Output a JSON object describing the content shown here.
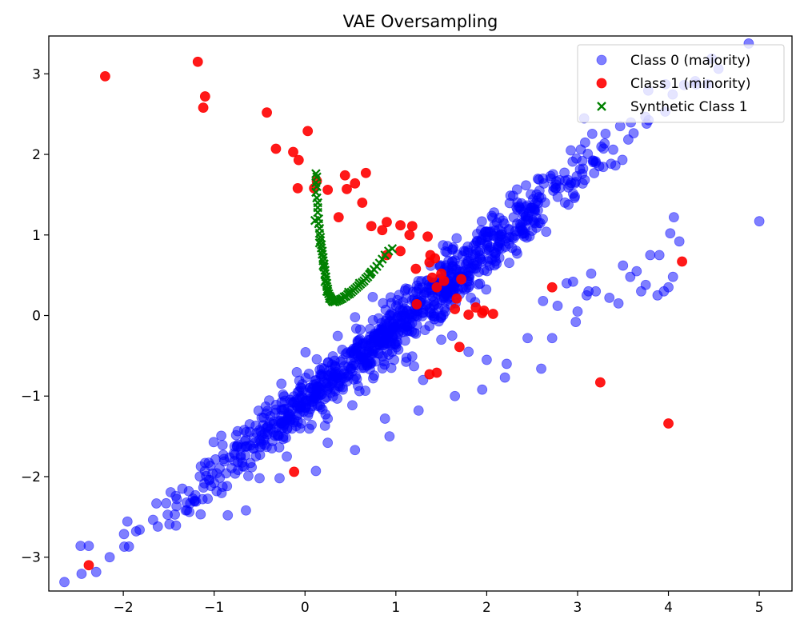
{
  "chart_data": {
    "type": "scatter",
    "title": "VAE Oversampling",
    "xlabel": "",
    "ylabel": "",
    "xlim": [
      -2.82,
      5.36
    ],
    "ylim": [
      -3.42,
      3.47
    ],
    "xticks": [
      -2,
      -1,
      0,
      1,
      2,
      3,
      4,
      5
    ],
    "yticks": [
      -3,
      -2,
      -1,
      0,
      1,
      2,
      3
    ],
    "grid": false,
    "legend": "top-right",
    "series": [
      {
        "name": "Class 0 (majority)",
        "marker": "circle",
        "color": "#0000ff",
        "opacity": 0.5,
        "generated": {
          "count": 1000,
          "x_mean": 1.0,
          "x_std": 1.15,
          "slope": 0.94,
          "intercept": -1.05,
          "y_noise_std": 0.18,
          "seed": 7
        },
        "points": [
          [
            -2.47,
            -2.86
          ],
          [
            -2.38,
            -2.86
          ],
          [
            -2.15,
            -3.0
          ],
          [
            -1.82,
            -2.66
          ],
          [
            -1.62,
            -2.62
          ],
          [
            -0.85,
            -2.48
          ],
          [
            -0.65,
            -2.42
          ],
          [
            -0.38,
            -1.25
          ],
          [
            -1.35,
            -2.15
          ],
          [
            -1.1,
            -1.83
          ],
          [
            -0.3,
            -1.48
          ],
          [
            -0.28,
            -2.02
          ],
          [
            -0.2,
            -1.75
          ],
          [
            0.12,
            -1.93
          ],
          [
            0.25,
            -1.28
          ],
          [
            0.25,
            -1.58
          ],
          [
            0.28,
            -0.96
          ],
          [
            0.55,
            -1.67
          ],
          [
            0.75,
            -0.78
          ],
          [
            0.88,
            -1.28
          ],
          [
            0.93,
            -1.5
          ],
          [
            0.95,
            -0.65
          ],
          [
            0.98,
            -0.55
          ],
          [
            1.2,
            -0.63
          ],
          [
            1.25,
            -1.18
          ],
          [
            1.3,
            -0.8
          ],
          [
            1.5,
            -0.3
          ],
          [
            1.62,
            -0.25
          ],
          [
            1.65,
            -1.0
          ],
          [
            1.8,
            -0.45
          ],
          [
            1.95,
            -0.92
          ],
          [
            2.0,
            -0.55
          ],
          [
            2.2,
            -0.77
          ],
          [
            2.22,
            -0.6
          ],
          [
            2.45,
            -0.28
          ],
          [
            2.6,
            -0.66
          ],
          [
            2.62,
            0.18
          ],
          [
            2.72,
            -0.28
          ],
          [
            2.78,
            0.12
          ],
          [
            2.88,
            0.4
          ],
          [
            2.95,
            0.42
          ],
          [
            2.98,
            -0.08
          ],
          [
            3.0,
            0.05
          ],
          [
            3.1,
            0.25
          ],
          [
            3.12,
            0.3
          ],
          [
            3.15,
            0.52
          ],
          [
            3.2,
            0.3
          ],
          [
            3.35,
            0.22
          ],
          [
            3.45,
            0.15
          ],
          [
            3.5,
            0.62
          ],
          [
            3.58,
            0.48
          ],
          [
            3.65,
            0.55
          ],
          [
            3.7,
            0.3
          ],
          [
            3.75,
            0.38
          ],
          [
            3.8,
            0.75
          ],
          [
            3.88,
            0.25
          ],
          [
            3.9,
            0.75
          ],
          [
            3.95,
            0.3
          ],
          [
            4.0,
            0.35
          ],
          [
            4.02,
            1.02
          ],
          [
            4.05,
            0.48
          ],
          [
            4.06,
            1.22
          ],
          [
            4.12,
            0.92
          ],
          [
            5.0,
            1.17
          ],
          [
            -0.9,
            -1.73
          ],
          [
            -0.6,
            -1.83
          ],
          [
            -0.75,
            -1.62
          ],
          [
            -0.5,
            -2.02
          ],
          [
            -1.0,
            -2.08
          ],
          [
            -1.2,
            -2.31
          ]
        ]
      },
      {
        "name": "Class 1 (minority)",
        "marker": "circle",
        "color": "#ff0000",
        "opacity": 0.9,
        "points": [
          [
            -2.2,
            2.97
          ],
          [
            -1.18,
            3.15
          ],
          [
            -1.1,
            2.72
          ],
          [
            -1.12,
            2.58
          ],
          [
            -0.42,
            2.52
          ],
          [
            0.03,
            2.29
          ],
          [
            -0.32,
            2.07
          ],
          [
            -0.13,
            2.03
          ],
          [
            -0.07,
            1.93
          ],
          [
            -0.08,
            1.58
          ],
          [
            0.1,
            1.58
          ],
          [
            0.13,
            1.67
          ],
          [
            0.25,
            1.56
          ],
          [
            0.44,
            1.74
          ],
          [
            0.46,
            1.57
          ],
          [
            0.55,
            1.64
          ],
          [
            0.67,
            1.77
          ],
          [
            0.63,
            1.4
          ],
          [
            0.37,
            1.22
          ],
          [
            0.73,
            1.11
          ],
          [
            0.85,
            1.06
          ],
          [
            0.9,
            1.16
          ],
          [
            1.05,
            1.12
          ],
          [
            1.15,
            1.0
          ],
          [
            1.18,
            1.11
          ],
          [
            0.9,
            0.75
          ],
          [
            1.05,
            0.8
          ],
          [
            1.22,
            0.58
          ],
          [
            1.35,
            0.98
          ],
          [
            1.37,
            0.66
          ],
          [
            1.38,
            0.75
          ],
          [
            1.43,
            0.71
          ],
          [
            1.4,
            0.47
          ],
          [
            1.45,
            0.35
          ],
          [
            1.5,
            0.52
          ],
          [
            1.53,
            0.43
          ],
          [
            1.72,
            0.45
          ],
          [
            1.67,
            0.21
          ],
          [
            1.65,
            0.08
          ],
          [
            1.8,
            0.01
          ],
          [
            1.88,
            0.1
          ],
          [
            1.95,
            0.03
          ],
          [
            1.97,
            0.06
          ],
          [
            2.07,
            0.02
          ],
          [
            1.23,
            0.14
          ],
          [
            2.72,
            0.35
          ],
          [
            1.7,
            -0.39
          ],
          [
            1.45,
            -0.71
          ],
          [
            1.37,
            -0.73
          ],
          [
            3.25,
            -0.83
          ],
          [
            4.0,
            -1.34
          ],
          [
            4.15,
            0.67
          ],
          [
            -0.12,
            -1.94
          ],
          [
            -2.38,
            -3.1
          ]
        ]
      },
      {
        "name": "Synthetic Class 1",
        "marker": "x",
        "color": "#008000",
        "opacity": 1,
        "points": [
          [
            0.12,
            1.76
          ],
          [
            0.13,
            1.72
          ],
          [
            0.12,
            1.65
          ],
          [
            0.13,
            1.6
          ],
          [
            0.12,
            1.53
          ],
          [
            0.13,
            1.46
          ],
          [
            0.14,
            1.4
          ],
          [
            0.14,
            1.34
          ],
          [
            0.14,
            1.28
          ],
          [
            0.15,
            1.2
          ],
          [
            0.15,
            1.14
          ],
          [
            0.16,
            1.08
          ],
          [
            0.16,
            1.02
          ],
          [
            0.17,
            0.97
          ],
          [
            0.17,
            0.93
          ],
          [
            0.18,
            0.88
          ],
          [
            0.18,
            0.84
          ],
          [
            0.19,
            0.8
          ],
          [
            0.19,
            0.76
          ],
          [
            0.2,
            0.72
          ],
          [
            0.2,
            0.68
          ],
          [
            0.21,
            0.64
          ],
          [
            0.21,
            0.6
          ],
          [
            0.22,
            0.56
          ],
          [
            0.22,
            0.52
          ],
          [
            0.23,
            0.48
          ],
          [
            0.23,
            0.44
          ],
          [
            0.24,
            0.4
          ],
          [
            0.24,
            0.36
          ],
          [
            0.25,
            0.33
          ],
          [
            0.25,
            0.3
          ],
          [
            0.26,
            0.27
          ],
          [
            0.27,
            0.24
          ],
          [
            0.28,
            0.22
          ],
          [
            0.29,
            0.2
          ],
          [
            0.3,
            0.18
          ],
          [
            0.31,
            0.17
          ],
          [
            0.33,
            0.17
          ],
          [
            0.35,
            0.18
          ],
          [
            0.37,
            0.19
          ],
          [
            0.39,
            0.2
          ],
          [
            0.41,
            0.21
          ],
          [
            0.43,
            0.23
          ],
          [
            0.45,
            0.24
          ],
          [
            0.47,
            0.26
          ],
          [
            0.49,
            0.27
          ],
          [
            0.51,
            0.29
          ],
          [
            0.53,
            0.31
          ],
          [
            0.55,
            0.33
          ],
          [
            0.57,
            0.35
          ],
          [
            0.59,
            0.37
          ],
          [
            0.61,
            0.39
          ],
          [
            0.63,
            0.41
          ],
          [
            0.65,
            0.43
          ],
          [
            0.67,
            0.46
          ],
          [
            0.69,
            0.48
          ],
          [
            0.71,
            0.51
          ],
          [
            0.73,
            0.54
          ],
          [
            0.76,
            0.57
          ],
          [
            0.79,
            0.61
          ],
          [
            0.82,
            0.65
          ],
          [
            0.85,
            0.7
          ],
          [
            0.88,
            0.75
          ],
          [
            0.92,
            0.8
          ],
          [
            0.96,
            0.83
          ],
          [
            0.11,
            1.18
          ],
          [
            0.16,
            0.9
          ],
          [
            0.2,
            0.62
          ],
          [
            0.24,
            0.3
          ],
          [
            0.34,
            0.2
          ],
          [
            0.48,
            0.29
          ],
          [
            0.6,
            0.4
          ],
          [
            0.72,
            0.52
          ],
          [
            0.22,
            0.42
          ],
          [
            0.27,
            0.21
          ]
        ]
      }
    ]
  }
}
